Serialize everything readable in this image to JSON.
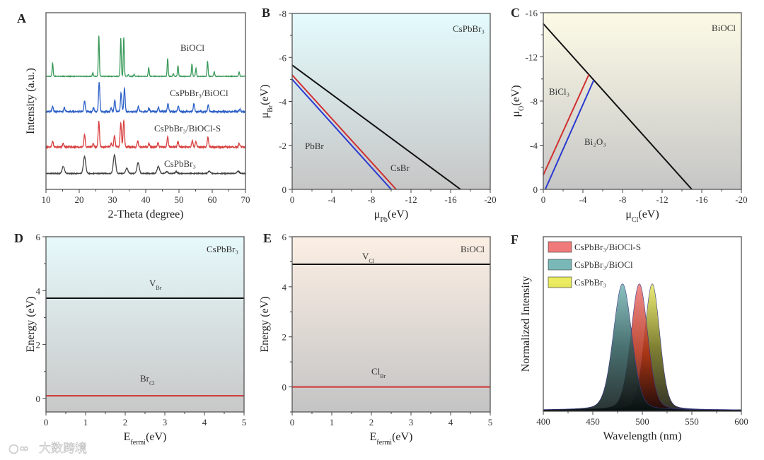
{
  "watermark": "大数跨境",
  "chart_data": [
    {
      "id": "A",
      "type": "line",
      "panel_label": "A",
      "xlabel": "2-Theta (degree)",
      "ylabel": "Intensity (a.u.)",
      "xlim": [
        10,
        70
      ],
      "ylim": [
        0,
        10
      ],
      "xticks": [
        10,
        20,
        30,
        40,
        50,
        60,
        70
      ],
      "series": [
        {
          "name": "BiOCl",
          "color": "#3a9a5a",
          "offset": 6.4,
          "width": 0.15,
          "noise": 0.03,
          "peaks": [
            [
              12.0,
              0.75
            ],
            [
              24.1,
              0.2
            ],
            [
              25.9,
              2.3
            ],
            [
              32.5,
              2.15
            ],
            [
              33.4,
              2.2
            ],
            [
              34.8,
              0.1
            ],
            [
              36.5,
              0.12
            ],
            [
              40.9,
              0.5
            ],
            [
              46.6,
              1.0
            ],
            [
              48.3,
              0.15
            ],
            [
              49.7,
              0.6
            ],
            [
              53.9,
              0.7
            ],
            [
              55.1,
              0.45
            ],
            [
              58.6,
              0.85
            ],
            [
              60.6,
              0.25
            ],
            [
              68.1,
              0.25
            ]
          ]
        },
        {
          "name": "CsPbBr₃/BiOCl",
          "color": "#2f62c8",
          "offset": 4.4,
          "width": 0.2,
          "noise": 0.08,
          "peaks": [
            [
              12.0,
              0.3
            ],
            [
              15.5,
              0.25
            ],
            [
              21.6,
              0.6
            ],
            [
              24.3,
              0.2
            ],
            [
              26.0,
              1.65
            ],
            [
              29.6,
              0.2
            ],
            [
              30.7,
              0.65
            ],
            [
              32.6,
              1.05
            ],
            [
              33.6,
              1.3
            ],
            [
              37.8,
              0.3
            ],
            [
              41.0,
              0.2
            ],
            [
              43.8,
              0.25
            ],
            [
              46.7,
              0.45
            ],
            [
              49.8,
              0.3
            ],
            [
              54.5,
              0.45
            ],
            [
              58.8,
              0.4
            ],
            [
              68.3,
              0.15
            ]
          ]
        },
        {
          "name": "CsPbBr₃/BiOCl-S",
          "color": "#d84040",
          "offset": 2.4,
          "width": 0.2,
          "noise": 0.08,
          "peaks": [
            [
              12.0,
              0.35
            ],
            [
              15.2,
              0.2
            ],
            [
              21.6,
              0.7
            ],
            [
              24.2,
              0.2
            ],
            [
              25.9,
              1.45
            ],
            [
              29.6,
              0.2
            ],
            [
              30.6,
              0.65
            ],
            [
              32.5,
              1.35
            ],
            [
              33.4,
              1.5
            ],
            [
              37.6,
              0.35
            ],
            [
              41.0,
              0.2
            ],
            [
              43.7,
              0.25
            ],
            [
              46.6,
              0.55
            ],
            [
              49.7,
              0.3
            ],
            [
              54.0,
              0.35
            ],
            [
              55.1,
              0.3
            ],
            [
              58.7,
              0.55
            ],
            [
              68.1,
              0.2
            ]
          ]
        },
        {
          "name": "CsPbBr₃",
          "color": "#444444",
          "offset": 0.9,
          "width": 0.35,
          "noise": 0.04,
          "peaks": [
            [
              15.2,
              0.4
            ],
            [
              21.6,
              0.95
            ],
            [
              30.6,
              1.05
            ],
            [
              34.3,
              0.3
            ],
            [
              37.7,
              0.6
            ],
            [
              43.8,
              0.4
            ],
            [
              46.3,
              0.1
            ],
            [
              49.2,
              0.1
            ],
            [
              59.1,
              0.12
            ],
            [
              67.8,
              0.12
            ]
          ]
        }
      ]
    },
    {
      "id": "B",
      "type": "line",
      "panel_label": "B",
      "xlabel": {
        "main": "μ",
        "sub": "Pb",
        "tail": "(eV)"
      },
      "ylabel": {
        "main": "μ",
        "sub": "Br",
        "tail": "(eV)"
      },
      "xlim": [
        0,
        -20
      ],
      "ylim": [
        0,
        -8
      ],
      "xticks": [
        0,
        -4,
        -8,
        -12,
        -16,
        -20
      ],
      "yticks": [
        0,
        -2,
        -4,
        -6,
        -8
      ],
      "title": "CsPbBr₃",
      "regions": [
        "PbBr",
        "CsBr"
      ],
      "series": [
        {
          "name": "CsBr boundary",
          "color": "#111111",
          "points": [
            [
              0,
              -5.65
            ],
            [
              -17.0,
              0
            ]
          ]
        },
        {
          "name": "PbBr boundary (red)",
          "color": "#d03030",
          "points": [
            [
              0,
              -5.2
            ],
            [
              -10.5,
              0
            ]
          ]
        },
        {
          "name": "PbBr boundary (blue)",
          "color": "#2a3ad0",
          "points": [
            [
              0,
              -5.0
            ],
            [
              -10.0,
              0
            ]
          ]
        }
      ]
    },
    {
      "id": "C",
      "type": "line",
      "panel_label": "C",
      "xlabel": {
        "main": "μ",
        "sub": "Cl",
        "tail": "(eV)"
      },
      "ylabel": {
        "main": "μ",
        "sub": "O",
        "tail": "(eV)"
      },
      "xlim": [
        0,
        -20
      ],
      "ylim": [
        0,
        -16
      ],
      "xticks": [
        0,
        -4,
        -8,
        -12,
        -16,
        -20
      ],
      "yticks": [
        0,
        -4,
        -8,
        -12,
        -16
      ],
      "title": "BiOCl",
      "regions": [
        "BiCl₃",
        "Bi₂O₃"
      ],
      "series": [
        {
          "name": "BiOCl boundary",
          "color": "#111111",
          "points": [
            [
              0,
              -15.0
            ],
            [
              -15.0,
              0
            ]
          ]
        },
        {
          "name": "BiCl3 boundary (red)",
          "color": "#d03030",
          "points": [
            [
              0,
              -1.3
            ],
            [
              -4.6,
              -10.4
            ]
          ]
        },
        {
          "name": "Bi2O3 boundary (blue)",
          "color": "#2a3ad0",
          "points": [
            [
              -0.2,
              0
            ],
            [
              -5.1,
              -9.9
            ]
          ]
        }
      ]
    },
    {
      "id": "D",
      "type": "line",
      "panel_label": "D",
      "xlabel": {
        "main": "E",
        "sub": "fermi",
        "tail": "(eV)"
      },
      "ylabel": "Energy (eV)",
      "xlim": [
        0,
        5
      ],
      "ylim": [
        -0.5,
        6
      ],
      "xticks": [
        0,
        1,
        2,
        3,
        4,
        5
      ],
      "yticks": [
        0,
        2,
        4,
        6
      ],
      "title": "CsPbBr₃",
      "series": [
        {
          "name": "V_Br",
          "label": {
            "main": "V",
            "sub": "Br"
          },
          "color": "#111111",
          "value": 3.72
        },
        {
          "name": "Br_Cl",
          "label": {
            "main": "Br",
            "sub": "Cl"
          },
          "color": "#d03030",
          "value": 0.1
        }
      ]
    },
    {
      "id": "E",
      "type": "line",
      "panel_label": "E",
      "xlabel": {
        "main": "E",
        "sub": "fermi",
        "tail": "(eV)"
      },
      "ylabel": "Energy (eV)",
      "xlim": [
        0,
        5
      ],
      "ylim": [
        -1,
        6
      ],
      "xticks": [
        0,
        1,
        2,
        3,
        4,
        5
      ],
      "yticks": [
        0,
        2,
        4,
        6
      ],
      "title": "BiOCl",
      "series": [
        {
          "name": "V_Cl",
          "label": {
            "main": "V",
            "sub": "Cl"
          },
          "color": "#111111",
          "value": 4.9
        },
        {
          "name": "Cl_Br",
          "label": {
            "main": "Cl",
            "sub": "Br"
          },
          "color": "#d03030",
          "value": 0.0
        }
      ]
    },
    {
      "id": "F",
      "type": "area",
      "panel_label": "F",
      "xlabel": "Wavelength (nm)",
      "ylabel": "Normalized Intensity",
      "xlim": [
        400,
        600
      ],
      "ylim": [
        0,
        1.37
      ],
      "xticks": [
        400,
        450,
        500,
        550,
        600
      ],
      "legend_position": "top-left",
      "series": [
        {
          "name": "CsPbBr₃/BiOCl-S",
          "color": "#e86060",
          "peak": 497,
          "fwhm": 20
        },
        {
          "name": "CsPbBr₃/BiOCl",
          "color": "#6fb0b0",
          "peak": 480,
          "fwhm": 22
        },
        {
          "name": "CsPbBr₃",
          "color": "#e0e050",
          "peak": 510,
          "fwhm": 18
        }
      ]
    }
  ]
}
